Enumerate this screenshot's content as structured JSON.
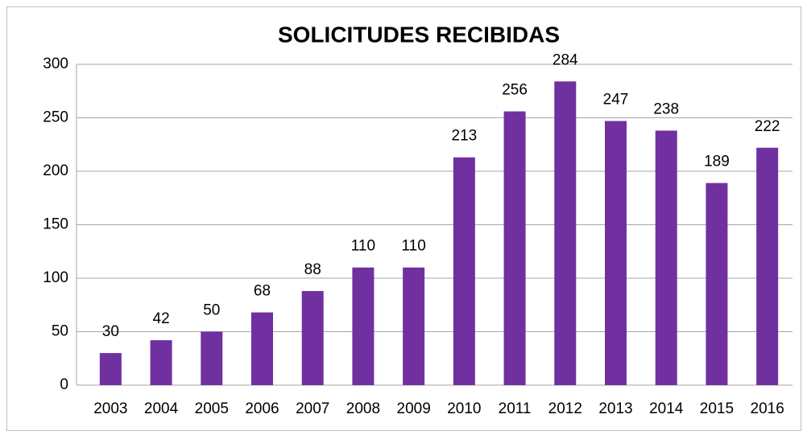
{
  "chart_data": {
    "type": "bar",
    "title": "SOLICITUDES RECIBIDAS",
    "categories": [
      "2003",
      "2004",
      "2005",
      "2006",
      "2007",
      "2008",
      "2009",
      "2010",
      "2011",
      "2012",
      "2013",
      "2014",
      "2015",
      "2016"
    ],
    "values": [
      30,
      42,
      50,
      68,
      88,
      110,
      110,
      213,
      256,
      284,
      247,
      238,
      189,
      222
    ],
    "color": "#7030a0",
    "ylim": [
      0,
      300
    ],
    "yticks": [
      0,
      50,
      100,
      150,
      200,
      250,
      300
    ],
    "grid": true
  }
}
